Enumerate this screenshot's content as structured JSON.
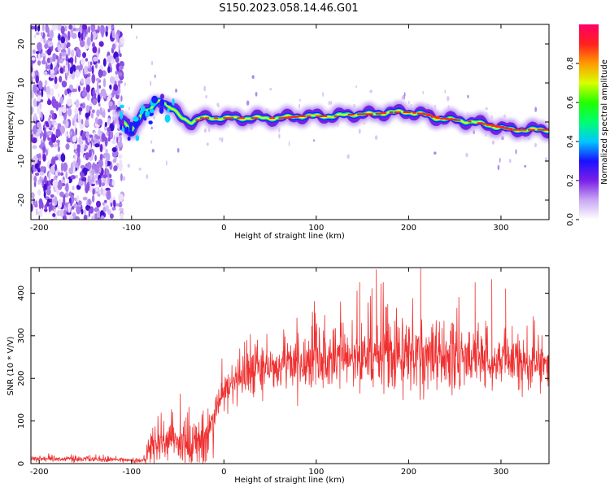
{
  "title": "S150.2023.058.14.46.G01",
  "chart_data": [
    {
      "type": "heatmap",
      "name": "spectrogram",
      "xlabel": "Height of straight line (km)",
      "ylabel": "Frequency (Hz)",
      "xlim": [
        -209,
        352
      ],
      "ylim": [
        -25,
        25
      ],
      "xticks": [
        -200,
        -100,
        0,
        100,
        200,
        300
      ],
      "yticks": [
        -20,
        -10,
        0,
        10,
        20
      ],
      "grid": false,
      "noise_region_x": [
        -209,
        -110
      ],
      "ridge": {
        "x": [
          -110,
          -100,
          -90,
          -80,
          -70,
          -65,
          -55,
          -45,
          -35,
          -25,
          -10,
          0,
          20,
          40,
          60,
          80,
          100,
          120,
          140,
          160,
          180,
          200,
          215,
          230,
          250,
          270,
          290,
          310,
          330,
          352
        ],
        "y": [
          0,
          -2,
          2,
          3,
          6,
          5,
          3,
          1,
          0,
          1,
          1,
          1,
          1,
          1,
          1,
          1.5,
          1.5,
          1.5,
          2,
          2,
          2.5,
          2.5,
          2,
          1,
          0.5,
          0,
          -1,
          -2,
          -2,
          -2
        ]
      },
      "colorbar": {
        "label": "Normalized spectral amplitude",
        "range": [
          0,
          1
        ],
        "ticks": [
          0.0,
          0.2,
          0.4,
          0.6,
          0.8
        ],
        "colors": [
          "#ffffff",
          "#c9a8f2",
          "#7b1fe8",
          "#1a10ff",
          "#00c8ff",
          "#00ff70",
          "#22ff00",
          "#d8ff00",
          "#ff9a00",
          "#ff2020",
          "#ff0066"
        ]
      }
    },
    {
      "type": "line",
      "name": "snr",
      "xlabel": "Height of straight line (km)",
      "ylabel": "SNR (10 * V/V)",
      "xlim": [
        -209,
        352
      ],
      "ylim": [
        0,
        460
      ],
      "xticks": [
        -200,
        -100,
        0,
        100,
        200,
        300
      ],
      "yticks": [
        0,
        100,
        200,
        300,
        400
      ],
      "grid": false,
      "color": "#f03030",
      "envelope": {
        "x": [
          -209,
          -150,
          -85,
          -80,
          -60,
          -40,
          -20,
          -10,
          0,
          20,
          40,
          60,
          80,
          100,
          120,
          140,
          160,
          180,
          200,
          220,
          240,
          260,
          280,
          300,
          320,
          340,
          352
        ],
        "mean": [
          12,
          10,
          8,
          40,
          50,
          50,
          45,
          110,
          170,
          210,
          225,
          230,
          235,
          240,
          245,
          248,
          250,
          252,
          255,
          255,
          253,
          250,
          248,
          245,
          240,
          235,
          235
        ],
        "spread": [
          6,
          6,
          5,
          40,
          50,
          60,
          50,
          50,
          50,
          50,
          55,
          55,
          60,
          60,
          65,
          70,
          70,
          75,
          75,
          75,
          70,
          65,
          65,
          60,
          55,
          45,
          45
        ]
      },
      "peaks": [
        {
          "x": 213,
          "y": 458
        },
        {
          "x": 290,
          "y": 432
        },
        {
          "x": 272,
          "y": 425
        },
        {
          "x": 165,
          "y": 455
        },
        {
          "x": 147,
          "y": 425
        },
        {
          "x": 305,
          "y": 410
        }
      ]
    }
  ]
}
